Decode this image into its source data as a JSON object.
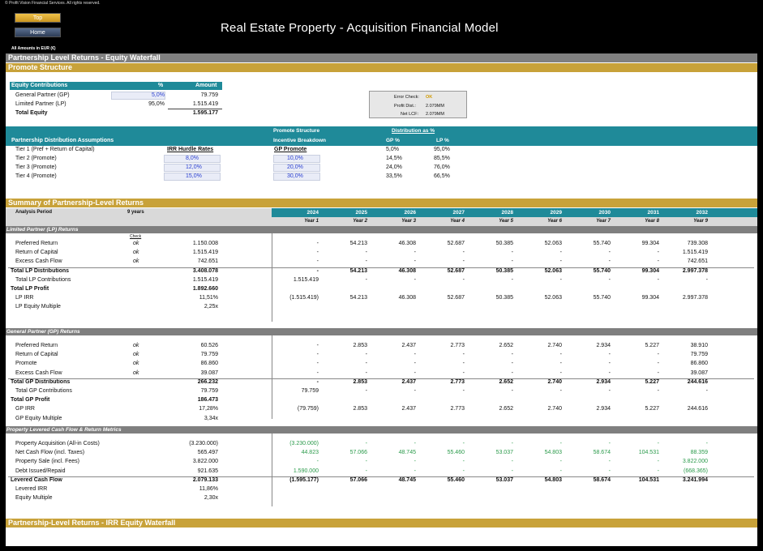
{
  "header": {
    "copyright": "© Profit Vision Financial Services. All rights reserved.",
    "top_btn": "Top",
    "home_btn": "Home",
    "title": "Real Estate Property - Acquisition Financial Model",
    "amounts": "All Amounts in  EUR (€)"
  },
  "bands": {
    "main": "Partnership Level Returns - Equity Waterfall",
    "promote": "Promote Structure",
    "summary": "Summary of Partnership-Level Returns",
    "irr": "Partnership-Level Returns - IRR Equity Waterfall"
  },
  "equity": {
    "header": [
      "Equity Contributions",
      "%",
      "Amount"
    ],
    "rows": [
      {
        "label": "General Partner (GP)",
        "pct": "5,0%",
        "amount": "79.759"
      },
      {
        "label": "Limited Partner (LP)",
        "pct": "95,0%",
        "amount": "1.515.419"
      },
      {
        "label": "Total Equity",
        "pct": "",
        "amount": "1.595.177"
      }
    ]
  },
  "errorcheck": {
    "rows": [
      {
        "label": "Error Check:",
        "value": "OK"
      },
      {
        "label": "Profit Dist.:",
        "value": "2.079MM"
      },
      {
        "label": "Net LCF:",
        "value": "2.079MM"
      }
    ]
  },
  "distribution": {
    "title": "Partnership Distribution Assumptions",
    "promote_structure": "Promote Structure",
    "incentive": "Incentive Breakdown",
    "dist_as_pct": "Distribution as %",
    "gp_pct": "GP %",
    "lp_pct": "LP %",
    "irr_hurdle": "IRR Hurdle Rates",
    "gp_promote": "GP Promote",
    "tiers": [
      {
        "label": "Tier 1 (Pref + Return of Capital)",
        "hurdle": "",
        "promote": "",
        "gp": "5,0%",
        "lp": "95,0%"
      },
      {
        "label": "Tier 2 (Promote)",
        "hurdle": "8,0%",
        "promote": "10,0%",
        "gp": "14,5%",
        "lp": "85,5%"
      },
      {
        "label": "Tier 3 (Promote)",
        "hurdle": "12,0%",
        "promote": "20,0%",
        "gp": "24,0%",
        "lp": "76,0%"
      },
      {
        "label": "Tier 4 (Promote)",
        "hurdle": "15,0%",
        "promote": "30,0%",
        "gp": "33,5%",
        "lp": "66,5%"
      }
    ]
  },
  "summary": {
    "analysis_label": "Analysis Period",
    "analysis_value": "9 years",
    "years": [
      "2024",
      "2025",
      "2026",
      "2027",
      "2028",
      "2029",
      "2030",
      "2031",
      "2032"
    ],
    "year_labels": [
      "Year 1",
      "Year 2",
      "Year 3",
      "Year 4",
      "Year 5",
      "Year 6",
      "Year 7",
      "Year 8",
      "Year 9"
    ],
    "check_label": "Check"
  },
  "lp": {
    "title": "Limited Partner (LP) Returns",
    "rows": [
      {
        "label": "Preferred Return",
        "check": "ok",
        "total": "1.150.008",
        "vals": [
          "-",
          "54.213",
          "46.308",
          "52.687",
          "50.385",
          "52.063",
          "55.740",
          "99.304",
          "739.308"
        ]
      },
      {
        "label": "Return of Capital",
        "check": "ok",
        "total": "1.515.419",
        "vals": [
          "-",
          "-",
          "-",
          "-",
          "-",
          "-",
          "-",
          "-",
          "1.515.419"
        ]
      },
      {
        "label": "Excess Cash Flow",
        "check": "ok",
        "total": "742.651",
        "vals": [
          "-",
          "-",
          "-",
          "-",
          "-",
          "-",
          "-",
          "-",
          "742.651"
        ]
      },
      {
        "label": "Total LP Distributions",
        "check": "",
        "total": "3.408.078",
        "vals": [
          "-",
          "54.213",
          "46.308",
          "52.687",
          "50.385",
          "52.063",
          "55.740",
          "99.304",
          "2.997.378"
        ]
      },
      {
        "label": "Total LP Contributions",
        "check": "",
        "total": "1.515.419",
        "vals": [
          "1.515.419",
          "-",
          "-",
          "-",
          "-",
          "-",
          "-",
          "-",
          "-"
        ]
      },
      {
        "label": "Total LP Profit",
        "check": "",
        "total": "1.892.660",
        "vals": [
          "",
          "",
          "",
          "",
          "",
          "",
          "",
          "",
          ""
        ]
      },
      {
        "label": "LP IRR",
        "check": "",
        "total": "11,51%",
        "vals": [
          "(1.515.419)",
          "54.213",
          "46.308",
          "52.687",
          "50.385",
          "52.063",
          "55.740",
          "99.304",
          "2.997.378"
        ]
      },
      {
        "label": "LP Equity Multiple",
        "check": "",
        "total": "2,25x",
        "vals": [
          "",
          "",
          "",
          "",
          "",
          "",
          "",
          "",
          ""
        ]
      }
    ]
  },
  "gp": {
    "title": "General Partner (GP) Returns",
    "rows": [
      {
        "label": "Preferred Return",
        "check": "ok",
        "total": "60.526",
        "vals": [
          "-",
          "2.853",
          "2.437",
          "2.773",
          "2.652",
          "2.740",
          "2.934",
          "5.227",
          "38.910"
        ]
      },
      {
        "label": "Return of Capital",
        "check": "ok",
        "total": "79.759",
        "vals": [
          "-",
          "-",
          "-",
          "-",
          "-",
          "-",
          "-",
          "-",
          "79.759"
        ]
      },
      {
        "label": "Promote",
        "check": "ok",
        "total": "86.860",
        "vals": [
          "-",
          "-",
          "-",
          "-",
          "-",
          "-",
          "-",
          "-",
          "86.860"
        ]
      },
      {
        "label": "Excess Cash Flow",
        "check": "ok",
        "total": "39.087",
        "vals": [
          "-",
          "-",
          "-",
          "-",
          "-",
          "-",
          "-",
          "-",
          "39.087"
        ]
      },
      {
        "label": "Total GP Distributions",
        "check": "",
        "total": "266.232",
        "vals": [
          "-",
          "2.853",
          "2.437",
          "2.773",
          "2.652",
          "2.740",
          "2.934",
          "5.227",
          "244.616"
        ]
      },
      {
        "label": "Total GP Contributions",
        "check": "",
        "total": "79.759",
        "vals": [
          "79.759",
          "-",
          "-",
          "-",
          "-",
          "-",
          "-",
          "-",
          "-"
        ]
      },
      {
        "label": "Total GP Profit",
        "check": "",
        "total": "186.473",
        "vals": [
          "",
          "",
          "",
          "",
          "",
          "",
          "",
          "",
          ""
        ]
      },
      {
        "label": "GP IRR",
        "check": "",
        "total": "17,28%",
        "vals": [
          "(79.759)",
          "2.853",
          "2.437",
          "2.773",
          "2.652",
          "2.740",
          "2.934",
          "5.227",
          "244.616"
        ]
      },
      {
        "label": "GP Equity Multiple",
        "check": "",
        "total": "3,34x",
        "vals": [
          "",
          "",
          "",
          "",
          "",
          "",
          "",
          "",
          ""
        ]
      }
    ]
  },
  "plcf": {
    "title": "Property Levered Cash Flow & Return Metrics",
    "rows": [
      {
        "label": "Property Acquisition (All-in Costs)",
        "total": "(3.230.000)",
        "vals": [
          "(3.230.000)",
          "-",
          "-",
          "-",
          "-",
          "-",
          "-",
          "-",
          "-"
        ]
      },
      {
        "label": "Net Cash Flow (incl. Taxes)",
        "total": "565.497",
        "vals": [
          "44.823",
          "57.066",
          "48.745",
          "55.460",
          "53.037",
          "54.803",
          "58.674",
          "104.531",
          "88.359"
        ]
      },
      {
        "label": "Property Sale (incl. Fees)",
        "total": "3.822.000",
        "vals": [
          "-",
          "-",
          "-",
          "-",
          "-",
          "-",
          "-",
          "-",
          "3.822.000"
        ]
      },
      {
        "label": "Debt Issued/Repaid",
        "total": "921.635",
        "vals": [
          "1.590.000",
          "-",
          "-",
          "-",
          "-",
          "-",
          "-",
          "-",
          "(668.365)"
        ]
      },
      {
        "label": "Levered Cash Flow",
        "total": "2.079.133",
        "vals": [
          "(1.595.177)",
          "57.066",
          "48.745",
          "55.460",
          "53.037",
          "54.803",
          "58.674",
          "104.531",
          "3.241.994"
        ]
      },
      {
        "label": "Levered IRR",
        "total": "11,86%",
        "vals": [
          "",
          "",
          "",
          "",
          "",
          "",
          "",
          "",
          ""
        ]
      },
      {
        "label": "Equity Multiple",
        "total": "2,30x",
        "vals": [
          "",
          "",
          "",
          "",
          "",
          "",
          "",
          "",
          ""
        ]
      }
    ]
  }
}
